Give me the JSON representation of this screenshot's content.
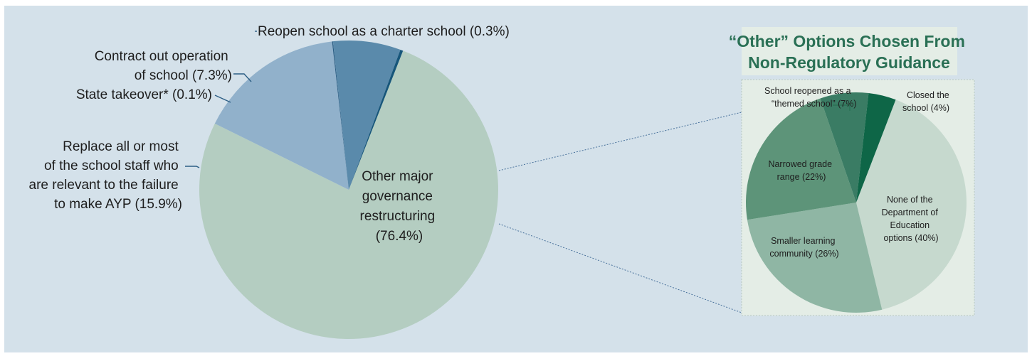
{
  "chart_data": [
    {
      "type": "pie",
      "title": "",
      "slices": [
        {
          "label": "Other major governance restructuring (76.4%)",
          "value": 76.4,
          "color": "#b4cdc1"
        },
        {
          "label": "Replace all or most of the school staff who are relevant to the failure to make AYP (15.9%)",
          "value": 15.9,
          "color": "#91b1cb"
        },
        {
          "label": "State takeover* (0.1%)",
          "value": 0.1,
          "color": "#2d5f85"
        },
        {
          "label": "Contract out operation of school (7.3%)",
          "value": 7.3,
          "color": "#5a8aab"
        },
        {
          "label": "Reopen school as a charter school (0.3%)",
          "value": 0.3,
          "color": "#17567a"
        }
      ],
      "labels_text": {
        "other_major": [
          "Other major",
          "governance",
          "restructuring",
          "(76.4%)"
        ],
        "replace_staff": [
          "Replace all or most",
          "of the school staff who",
          "are relevant to the failure",
          "to make AYP (15.9%)"
        ],
        "state_takeover": [
          "State takeover* (0.1%)"
        ],
        "contract_out": [
          "Contract out operation",
          "of school (7.3%)"
        ],
        "reopen_charter": [
          "Reopen school as a charter school (0.3%)"
        ]
      }
    },
    {
      "type": "pie",
      "title": "“Other” Options Chosen From Non-Regulatory Guidance",
      "title_lines": [
        "“Other” Options Chosen From",
        "Non-Regulatory Guidance"
      ],
      "slices": [
        {
          "label": "None of the Department of Education options (40%)",
          "value": 40,
          "color": "#c6d9ce"
        },
        {
          "label": "Smaller learning community (26%)",
          "value": 26,
          "color": "#8fb6a4"
        },
        {
          "label": "Narrowed grade range (22%)",
          "value": 22,
          "color": "#5d9479"
        },
        {
          "label": "School reopened as a “themed school” (7%)",
          "value": 7,
          "color": "#3a7c64"
        },
        {
          "label": "Closed the school (4%)",
          "value": 4,
          "color": "#0e6647"
        }
      ],
      "labels_text": {
        "none_options": [
          "None of the",
          "Department of",
          "Education",
          "options (40%)"
        ],
        "smaller_learning": [
          "Smaller learning",
          "community (26%)"
        ],
        "narrowed_grade": [
          "Narrowed grade",
          "range (22%)"
        ],
        "themed_school": [
          "School reopened as a",
          "“themed school” (7%)"
        ],
        "closed_school": [
          "Closed the",
          "school (4%)"
        ]
      }
    }
  ]
}
